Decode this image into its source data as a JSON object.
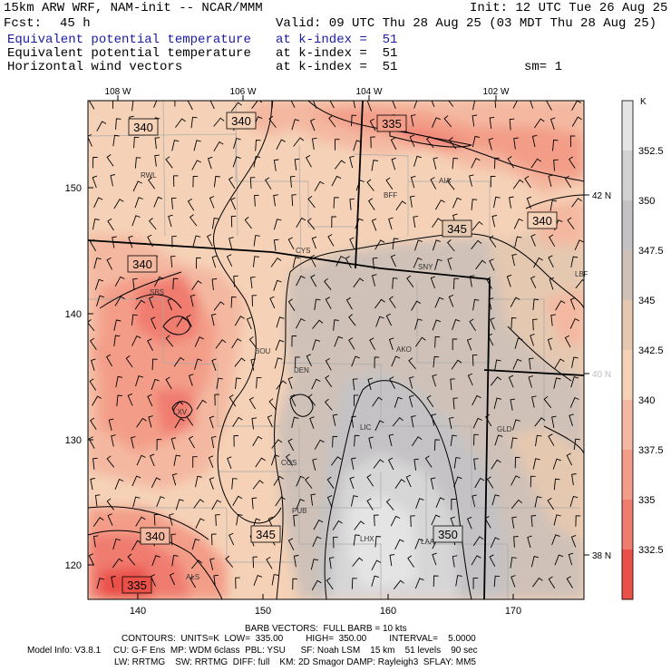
{
  "header": {
    "model": "15km ARW WRF, NAM-init -- NCAR/MMM",
    "init": "Init: 12 UTC Tue 26 Aug 25",
    "fcst_label": "Fcst:",
    "fcst_value": "45 h",
    "valid": "Valid: 09 UTC Thu 28 Aug 25 (03 MDT Thu 28 Aug 25)",
    "fields": [
      {
        "name": "Equivalent potential temperature",
        "level": "at k-index =  51",
        "color": "#1a1aa6"
      },
      {
        "name": "Equivalent potential temperature",
        "level": "at k-index =  51",
        "color": "#000000"
      },
      {
        "name": "Horizontal wind vectors",
        "level": "at k-index =  51",
        "color": "#000000"
      }
    ],
    "sm": "sm= 1"
  },
  "map": {
    "top_lon_labels": [
      "108 W",
      "106 W",
      "104 W",
      "102 W"
    ],
    "left_grid_labels": [
      "150",
      "140",
      "130",
      "120"
    ],
    "bottom_grid_labels": [
      "140",
      "150",
      "160",
      "170"
    ],
    "right_lat_labels": [
      "42 N",
      "40 N",
      "38 N"
    ],
    "stations": [
      "RWL",
      "BFF",
      "AIA",
      "CYS",
      "SNY",
      "SBS",
      "LBF",
      "BOU",
      "AKO",
      "DEN",
      "LXV",
      "LIC",
      "GLD",
      "COS",
      "PUB",
      "LHX",
      "LAA",
      "ALS"
    ],
    "contour_labels": [
      "340",
      "340",
      "335",
      "345",
      "340",
      "340",
      "340",
      "345",
      "350",
      "335"
    ]
  },
  "colorbar": {
    "unit": "K",
    "ticks": [
      "352.5",
      "350",
      "347.5",
      "345",
      "342.5",
      "340",
      "337.5",
      "335",
      "332.5"
    ],
    "colors": [
      "#e4e4e4",
      "#d2d2d2",
      "#c4c2c4",
      "#cfc1b8",
      "#e5c8b0",
      "#f5d2b7",
      "#f4b8a0",
      "#f39d88",
      "#f07c70",
      "#ea5048"
    ]
  },
  "footer": {
    "barb": "BARB VECTORS:  FULL BARB = 10 kts",
    "contours": "CONTOURS:  UNITS=K  LOW=  335.00         HIGH=  350.00         INTERVAL=    5.0000",
    "model_info": "Model Info: V3.8.1     CU: G-F Ens  MP: WDM 6class  PBL: YSU      SF: Noah LSM    15 km    51 levels    90 sec",
    "model_info2": "LW: RRTMG    SW: RRTMG  DIFF: full    KM: 2D Smagor DAMP: Rayleigh3  SFLAY: MM5"
  }
}
